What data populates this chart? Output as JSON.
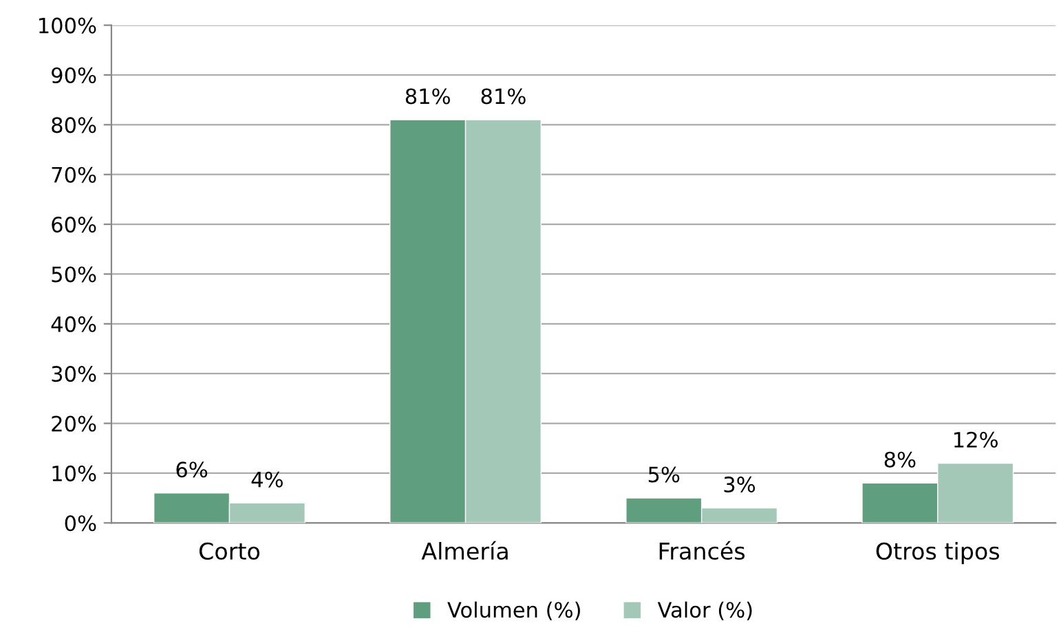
{
  "chart_data": {
    "type": "bar",
    "categories": [
      "Corto",
      "Almería",
      "Francés",
      "Otros tipos"
    ],
    "series": [
      {
        "name": "Volumen (%)",
        "color": "#5f9e7f",
        "values": [
          6,
          81,
          5,
          8
        ],
        "value_labels": [
          "6%",
          "81%",
          "5%",
          "8%"
        ]
      },
      {
        "name": "Valor (%)",
        "color": "#a3c8b8",
        "values": [
          4,
          81,
          3,
          12
        ],
        "value_labels": [
          "4%",
          "81%",
          "3%",
          "12%"
        ]
      }
    ],
    "ylim": [
      0,
      100
    ],
    "yticks": [
      {
        "value": 0,
        "label": "0%"
      },
      {
        "value": 10,
        "label": "10%"
      },
      {
        "value": 20,
        "label": "20%"
      },
      {
        "value": 30,
        "label": "30%"
      },
      {
        "value": 40,
        "label": "40%"
      },
      {
        "value": 50,
        "label": "50%"
      },
      {
        "value": 60,
        "label": "60%"
      },
      {
        "value": 70,
        "label": "70%"
      },
      {
        "value": 80,
        "label": "80%"
      },
      {
        "value": 90,
        "label": "90%"
      },
      {
        "value": 100,
        "label": "100%"
      }
    ],
    "grid": "y",
    "legend": "bottom"
  }
}
